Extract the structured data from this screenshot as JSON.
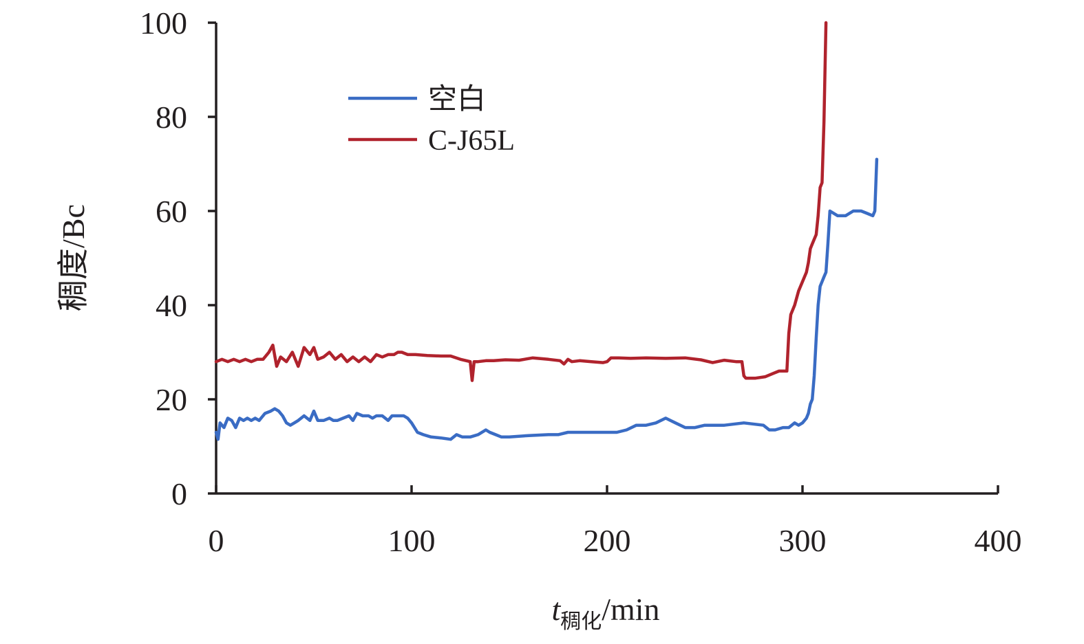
{
  "chart_data": {
    "type": "line",
    "title": "",
    "xlabel": {
      "main": "t",
      "subscript": "稠化",
      "unit": "/min"
    },
    "ylabel": "稠度/Bc",
    "xlim": [
      0,
      400
    ],
    "ylim": [
      0,
      100
    ],
    "xticks": [
      0,
      100,
      200,
      300,
      400
    ],
    "yticks": [
      0,
      20,
      40,
      60,
      80,
      100
    ],
    "legend_position": "upper-left",
    "grid": false,
    "series": [
      {
        "name": "空白",
        "color": "#3a6cc4",
        "x": [
          0,
          1,
          2,
          4,
          6,
          8,
          10,
          12,
          14,
          16,
          18,
          20,
          22,
          25,
          28,
          30,
          32,
          34,
          36,
          38,
          40,
          42,
          45,
          48,
          50,
          52,
          55,
          58,
          60,
          62,
          65,
          68,
          70,
          72,
          75,
          78,
          80,
          82,
          85,
          88,
          90,
          93,
          96,
          98,
          100,
          103,
          106,
          110,
          115,
          120,
          123,
          126,
          130,
          134,
          138,
          140,
          143,
          146,
          150,
          160,
          170,
          175,
          180,
          190,
          200,
          205,
          210,
          215,
          220,
          225,
          230,
          235,
          240,
          245,
          250,
          260,
          270,
          280,
          283,
          286,
          290,
          293,
          296,
          298,
          300,
          302,
          303,
          304,
          305,
          306,
          307,
          308,
          309,
          310,
          311,
          312,
          313,
          314,
          318,
          322,
          326,
          330,
          333,
          336,
          337,
          338
        ],
        "y": [
          13,
          11.5,
          15,
          14,
          16,
          15.5,
          14,
          16,
          15.5,
          16,
          15.5,
          16,
          15.5,
          17,
          17.5,
          18,
          17.5,
          16.5,
          15,
          14.5,
          15,
          15.5,
          16.5,
          15.5,
          17.5,
          15.5,
          15.5,
          16,
          15.5,
          15.5,
          16,
          16.5,
          15.5,
          17,
          16.5,
          16.5,
          16,
          16.5,
          16.5,
          15.5,
          16.5,
          16.5,
          16.5,
          16,
          15,
          13,
          12.5,
          12,
          11.8,
          11.5,
          12.5,
          12,
          12,
          12.5,
          13.5,
          13,
          12.5,
          12,
          12,
          12.3,
          12.5,
          12.5,
          13,
          13,
          13,
          13,
          13.5,
          14.5,
          14.5,
          15,
          16,
          15,
          14,
          14,
          14.5,
          14.5,
          15,
          14.5,
          13.5,
          13.5,
          14,
          14,
          15,
          14.5,
          15,
          16,
          17,
          19,
          20,
          25,
          33,
          40,
          44,
          45,
          46,
          47,
          53,
          60,
          59,
          59,
          60,
          60,
          59.5,
          59,
          60,
          71
        ]
      },
      {
        "name": "C-J65L",
        "color": "#b0232d",
        "x": [
          0,
          3,
          6,
          9,
          12,
          15,
          18,
          21,
          24,
          27,
          29,
          31,
          33,
          36,
          39,
          42,
          45,
          48,
          50,
          52,
          55,
          58,
          61,
          64,
          67,
          70,
          73,
          76,
          79,
          82,
          85,
          88,
          91,
          93,
          95,
          98,
          102,
          108,
          115,
          120,
          125,
          128,
          130,
          131,
          132,
          134,
          138,
          142,
          148,
          155,
          162,
          170,
          176,
          178,
          180,
          182,
          186,
          192,
          198,
          200,
          202,
          206,
          212,
          220,
          230,
          240,
          248,
          254,
          260,
          266,
          269,
          270,
          271,
          276,
          281,
          285,
          288,
          291,
          292,
          293,
          294,
          296,
          298,
          300,
          302,
          303,
          304,
          305,
          306,
          307,
          308,
          309,
          310,
          311,
          311.5,
          312
        ],
        "y": [
          28,
          28.5,
          28,
          28.5,
          28,
          28.5,
          28,
          28.5,
          28.5,
          30,
          31.5,
          27,
          29,
          28,
          30,
          27,
          31,
          29.5,
          31,
          28.5,
          29,
          30,
          28.5,
          29.5,
          28,
          29,
          28,
          29,
          28,
          29.5,
          29,
          29.5,
          29.5,
          30,
          30,
          29.5,
          29.5,
          29.3,
          29.2,
          29.2,
          28.5,
          28.2,
          28,
          24,
          28,
          28,
          28.2,
          28.2,
          28.4,
          28.3,
          28.8,
          28.5,
          28.2,
          27.5,
          28.5,
          28,
          28.2,
          28.0,
          27.8,
          28.0,
          28.8,
          28.8,
          28.7,
          28.8,
          28.7,
          28.8,
          28.4,
          27.8,
          28.3,
          28,
          28,
          25,
          24.5,
          24.5,
          24.8,
          25.5,
          26,
          26,
          26,
          34,
          38,
          40,
          43,
          45,
          47,
          49,
          52,
          53,
          54,
          55,
          59,
          65,
          66,
          79,
          90,
          100
        ]
      }
    ]
  }
}
